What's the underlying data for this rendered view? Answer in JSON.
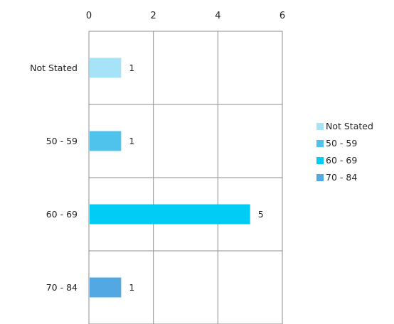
{
  "chart_data": {
    "type": "bar",
    "orientation": "horizontal",
    "categories": [
      "Not Stated",
      "50 - 59",
      "60 - 69",
      "70 - 84"
    ],
    "values": [
      1,
      1,
      5,
      1
    ],
    "data_labels": [
      "1",
      "1",
      "5",
      "1"
    ],
    "colors": [
      "#a6e3f8",
      "#50c3ec",
      "#00ccf5",
      "#52a8e2"
    ],
    "xlim": [
      0,
      6
    ],
    "xticks": [
      0,
      2,
      4,
      6
    ],
    "x_axis_position": "top",
    "grid": true,
    "legend": {
      "position": "right",
      "entries": [
        "Not Stated",
        "50 - 59",
        "60 - 69",
        "70 - 84"
      ]
    }
  }
}
